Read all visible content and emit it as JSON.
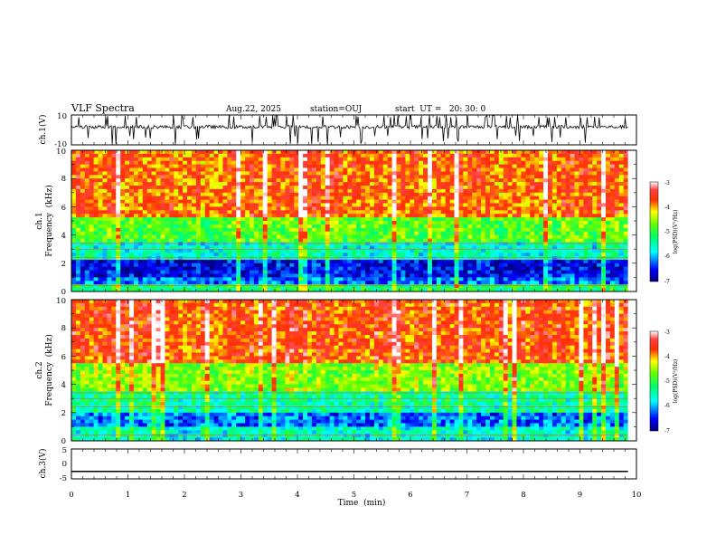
{
  "header": {
    "title": "VLF Spectra",
    "date": "Aug.22, 2025",
    "station": "station=OUJ",
    "start": "start  UT =   20: 30: 0"
  },
  "chart_data": [
    {
      "type": "line",
      "panel": "ch1-waveform",
      "ylabel": "ch.1(V)",
      "ylim": [
        -10,
        10
      ],
      "yticks": [
        "10",
        "-10"
      ],
      "description_values": {
        "baseline": 2,
        "min_spike": -10,
        "max_spike": 10
      }
    },
    {
      "type": "heatmap",
      "panel": "ch1-spectrogram",
      "ylabel": "ch.1",
      "ylabel2": "Frequency  (kHz)",
      "ylim": [
        0,
        10
      ],
      "yticks": [
        "0",
        "2",
        "4",
        "6",
        "8",
        "10"
      ],
      "bands": [
        {
          "from": 0,
          "to": 0.4,
          "level": -5.2
        },
        {
          "from": 0.4,
          "to": 1.0,
          "level": -6.2
        },
        {
          "from": 1.0,
          "to": 2.2,
          "level": -6.6
        },
        {
          "from": 2.2,
          "to": 3.5,
          "level": -5.6
        },
        {
          "from": 3.5,
          "to": 5.2,
          "level": -4.8
        },
        {
          "from": 5.2,
          "to": 10,
          "level": -3.8
        }
      ],
      "colorbar": {
        "ticks": [
          "-3",
          "-4",
          "-5",
          "-6",
          "-7"
        ],
        "label": "log(PSD)(V²/Hz)",
        "range": [
          -7,
          -3
        ]
      }
    },
    {
      "type": "heatmap",
      "panel": "ch2-spectrogram",
      "ylabel": "ch.2",
      "ylabel2": "Frequency  (kHz)",
      "ylim": [
        0,
        10
      ],
      "yticks": [
        "0",
        "2",
        "4",
        "6",
        "8",
        "10"
      ],
      "bands": [
        {
          "from": 0,
          "to": 1.0,
          "level": -5.6
        },
        {
          "from": 1.0,
          "to": 2.0,
          "level": -6.2
        },
        {
          "from": 2.0,
          "to": 3.6,
          "level": -5.4
        },
        {
          "from": 3.6,
          "to": 5.5,
          "level": -4.6
        },
        {
          "from": 5.5,
          "to": 10,
          "level": -3.7
        }
      ],
      "colorbar": {
        "ticks": [
          "-3",
          "-4",
          "-5",
          "-6",
          "-7"
        ],
        "label": "log(PSD)(V²/Hz)",
        "range": [
          -7,
          -3
        ]
      }
    },
    {
      "type": "line",
      "panel": "ch3-waveform",
      "ylabel": "ch.3(V)",
      "ylim": [
        -5,
        5
      ],
      "yticks": [
        "5",
        "0",
        "-5"
      ],
      "values_constant": -2.5
    }
  ],
  "xaxis": {
    "label": "Time  (min)",
    "xlim": [
      0,
      10
    ],
    "ticks": [
      "0",
      "1",
      "2",
      "3",
      "4",
      "5",
      "6",
      "7",
      "8",
      "9",
      "10"
    ],
    "data_end": 9.85
  }
}
